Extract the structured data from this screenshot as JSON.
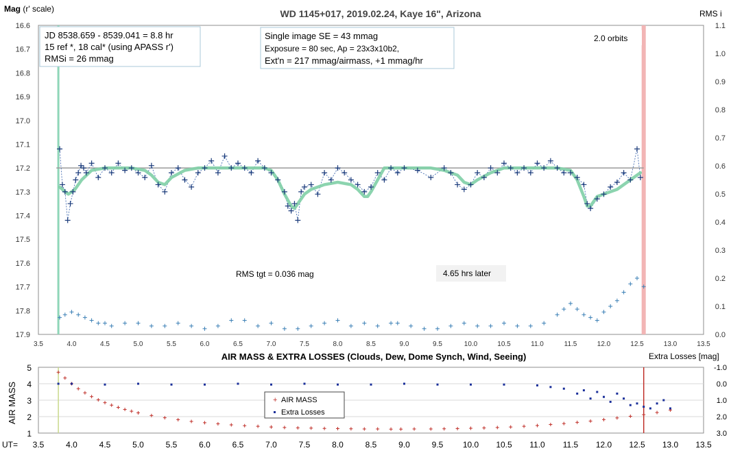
{
  "colors": {
    "mag_point": "#1a3a7a",
    "mag_line": "#2e5ca8",
    "model": "#7fcfa6",
    "rms_point": "#3a7fb5",
    "airmass": "#c0302a",
    "extra_losses": "#1a2f9a",
    "start_marker": "#8fd6b8",
    "end_marker": "#f2b5b5",
    "reference_line": "#9a9a9a",
    "grid": "#d9d9d9"
  },
  "top_chart": {
    "title_parts": [
      "WD 1145+017, ",
      "2019.02.24",
      ", Kaye 16\", Arizona"
    ],
    "ylabel_left_bold": "Mag",
    "ylabel_left_rest": " (r' scale)",
    "ylabel_right": "RMS i",
    "info_box_left": [
      "JD 8538.659 - 8539.041 = 8.8 hr",
      " 15 ref *, 18 cal* (using APASS r')",
      "RMSi = 26 mmag"
    ],
    "info_box_right": [
      "Single image SE = 43 mmag",
      "Exposure = 80 sec, Ap = 23x3x10b2,",
      "Ext'n = 217 mmag/airmass, +1 mmag/hr"
    ],
    "annotation_orbits": "2.0 orbits",
    "annotation_rms": "RMS tgt = 0.036 mag",
    "annotation_later": "4.65 hrs later"
  },
  "bottom_chart": {
    "title": "AIR MASS & EXTRA LOSSES (Clouds, Dew, Dome Synch, Wind, Seeing)",
    "ylabel_left": "AIR MASS",
    "ylabel_right": "Extra Losses [mag]",
    "xlabel": "UT=",
    "legend": [
      "AIR MASS",
      "Extra Losses"
    ]
  },
  "chart_data": [
    {
      "type": "scatter",
      "title": "WD 1145+017, 2019.02.24, Kaye 16\", Arizona",
      "xlabel": "",
      "ylabel": "Mag (r' scale)",
      "y2label": "RMS i",
      "xlim": [
        3.5,
        13.5
      ],
      "ylim": [
        17.9,
        16.6
      ],
      "y2lim": [
        0.0,
        1.1
      ],
      "x_ticks": [
        "3.5",
        "4.0",
        "4.5",
        "5.0",
        "5.5",
        "6.0",
        "6.5",
        "7.0",
        "7.5",
        "8.0",
        "8.5",
        "9.0",
        "9.5",
        "10.0",
        "10.5",
        "11.0",
        "11.5",
        "12.0",
        "12.5",
        "13.0",
        "13.5"
      ],
      "y_ticks": [
        "16.6",
        "16.7",
        "16.8",
        "16.9",
        "17.0",
        "17.1",
        "17.2",
        "17.3",
        "17.4",
        "17.5",
        "17.6",
        "17.7",
        "17.8",
        "17.9"
      ],
      "y2_ticks": [
        "1.1",
        "1.0",
        "0.9",
        "0.8",
        "0.7",
        "0.6",
        "0.5",
        "0.4",
        "0.3",
        "0.2",
        "0.1",
        "0.0"
      ],
      "grid": false,
      "reference_line_mag": 17.2,
      "start_marker_x": 3.8,
      "end_marker_x": 12.6,
      "series": [
        {
          "name": "",
          "type": "scatter",
          "x": [
            3.82,
            3.86,
            3.9,
            3.94,
            3.98,
            4.02,
            4.06,
            4.1,
            4.14,
            4.18,
            4.22,
            4.3,
            4.4,
            4.5,
            4.6,
            4.7,
            4.8,
            4.9,
            5.0,
            5.1,
            5.2,
            5.3,
            5.4,
            5.5,
            5.6,
            5.7,
            5.8,
            5.9,
            6.0,
            6.1,
            6.2,
            6.3,
            6.4,
            6.5,
            6.6,
            6.7,
            6.8,
            6.9,
            7.0,
            7.1,
            7.2,
            7.25,
            7.3,
            7.35,
            7.4,
            7.45,
            7.5,
            7.6,
            7.7,
            7.8,
            7.9,
            8.0,
            8.1,
            8.2,
            8.3,
            8.4,
            8.5,
            8.6,
            8.7,
            8.8,
            8.9,
            9.0,
            9.2,
            9.4,
            9.6,
            9.7,
            9.8,
            9.9,
            10.0,
            10.1,
            10.2,
            10.3,
            10.4,
            10.5,
            10.6,
            10.7,
            10.8,
            10.9,
            11.0,
            11.1,
            11.2,
            11.3,
            11.4,
            11.5,
            11.6,
            11.7,
            11.75,
            11.8,
            11.9,
            12.0,
            12.1,
            12.2,
            12.3,
            12.4,
            12.5,
            12.55
          ],
          "values": [
            17.12,
            17.27,
            17.3,
            17.42,
            17.35,
            17.3,
            17.25,
            17.22,
            17.19,
            17.2,
            17.22,
            17.18,
            17.24,
            17.2,
            17.22,
            17.18,
            17.21,
            17.2,
            17.22,
            17.24,
            17.19,
            17.27,
            17.3,
            17.22,
            17.2,
            17.25,
            17.28,
            17.22,
            17.2,
            17.17,
            17.22,
            17.15,
            17.2,
            17.18,
            17.2,
            17.22,
            17.17,
            17.2,
            17.22,
            17.25,
            17.3,
            17.36,
            17.38,
            17.35,
            17.42,
            17.3,
            17.28,
            17.27,
            17.31,
            17.22,
            17.25,
            17.2,
            17.22,
            17.25,
            17.27,
            17.3,
            17.28,
            17.22,
            17.25,
            17.2,
            17.22,
            17.2,
            17.21,
            17.24,
            17.2,
            17.22,
            17.27,
            17.29,
            17.27,
            17.22,
            17.24,
            17.2,
            17.22,
            17.18,
            17.2,
            17.22,
            17.2,
            17.22,
            17.18,
            17.2,
            17.17,
            17.2,
            17.22,
            17.22,
            17.24,
            17.27,
            17.35,
            17.37,
            17.33,
            17.31,
            17.28,
            17.26,
            17.22,
            17.25,
            17.12,
            17.24
          ]
        },
        {
          "name": "",
          "type": "line",
          "x": [
            3.82,
            3.9,
            3.95,
            4.05,
            4.15,
            4.3,
            4.5,
            4.7,
            4.9,
            5.1,
            5.2,
            5.3,
            5.4,
            5.5,
            5.7,
            5.9,
            6.1,
            6.3,
            6.5,
            6.7,
            6.9,
            7.0,
            7.1,
            7.2,
            7.3,
            7.35,
            7.4,
            7.5,
            7.6,
            7.8,
            8.0,
            8.2,
            8.3,
            8.4,
            8.45,
            8.5,
            8.6,
            8.7,
            8.8,
            9.0,
            9.2,
            9.4,
            9.6,
            9.8,
            9.9,
            10.0,
            10.1,
            10.3,
            10.5,
            10.7,
            10.9,
            11.1,
            11.3,
            11.5,
            11.6,
            11.7,
            11.75,
            11.8,
            11.85,
            11.9,
            12.0,
            12.2,
            12.4,
            12.55
          ],
          "values": [
            17.28,
            17.3,
            17.31,
            17.29,
            17.25,
            17.21,
            17.2,
            17.2,
            17.2,
            17.21,
            17.23,
            17.26,
            17.27,
            17.24,
            17.21,
            17.2,
            17.2,
            17.2,
            17.2,
            17.2,
            17.2,
            17.21,
            17.25,
            17.31,
            17.36,
            17.37,
            17.35,
            17.31,
            17.29,
            17.27,
            17.26,
            17.27,
            17.29,
            17.32,
            17.32,
            17.3,
            17.25,
            17.2,
            17.2,
            17.2,
            17.2,
            17.2,
            17.21,
            17.23,
            17.26,
            17.27,
            17.25,
            17.22,
            17.2,
            17.2,
            17.2,
            17.2,
            17.2,
            17.21,
            17.25,
            17.32,
            17.36,
            17.36,
            17.34,
            17.32,
            17.31,
            17.29,
            17.25,
            17.22
          ]
        },
        {
          "name": "",
          "type": "scatter",
          "axis": "y2",
          "x": [
            3.82,
            3.9,
            4.0,
            4.1,
            4.2,
            4.3,
            4.4,
            4.5,
            4.6,
            4.8,
            5.0,
            5.2,
            5.4,
            5.6,
            5.8,
            6.0,
            6.2,
            6.4,
            6.6,
            6.8,
            7.0,
            7.2,
            7.4,
            7.6,
            7.8,
            8.0,
            8.2,
            8.4,
            8.6,
            8.8,
            8.9,
            9.1,
            9.3,
            9.5,
            9.7,
            9.9,
            10.1,
            10.3,
            10.5,
            10.7,
            10.9,
            11.1,
            11.3,
            11.4,
            11.5,
            11.6,
            11.7,
            11.8,
            11.9,
            12.0,
            12.1,
            12.2,
            12.3,
            12.4,
            12.5,
            12.6
          ],
          "values": [
            0.06,
            0.07,
            0.08,
            0.07,
            0.06,
            0.05,
            0.04,
            0.04,
            0.03,
            0.04,
            0.04,
            0.03,
            0.03,
            0.04,
            0.03,
            0.02,
            0.03,
            0.05,
            0.05,
            0.03,
            0.04,
            0.02,
            0.02,
            0.03,
            0.04,
            0.05,
            0.03,
            0.04,
            0.03,
            0.04,
            0.04,
            0.03,
            0.02,
            0.02,
            0.03,
            0.04,
            0.03,
            0.03,
            0.04,
            0.03,
            0.03,
            0.04,
            0.07,
            0.09,
            0.11,
            0.09,
            0.07,
            0.06,
            0.05,
            0.08,
            0.1,
            0.12,
            0.15,
            0.18,
            0.2,
            0.17
          ]
        }
      ]
    },
    {
      "type": "scatter",
      "title": "AIR MASS & EXTRA LOSSES (Clouds, Dew, Dome Synch, Wind, Seeing)",
      "xlabel": "UT=",
      "ylabel": "AIR MASS",
      "y2label": "Extra Losses [mag]",
      "xlim": [
        3.5,
        13.5
      ],
      "ylim": [
        1,
        5
      ],
      "y2lim": [
        3.0,
        -1.0
      ],
      "x_ticks": [
        "3.5",
        "4.0",
        "4.5",
        "5.0",
        "5.5",
        "6.0",
        "6.5",
        "7.0",
        "7.5",
        "8.0",
        "8.5",
        "9.0",
        "9.5",
        "10.0",
        "10.5",
        "11.0",
        "11.5",
        "12.0",
        "12.5",
        "13.0",
        "13.5"
      ],
      "y_ticks": [
        "5",
        "4",
        "3",
        "2",
        "1"
      ],
      "y2_ticks": [
        "-1.0",
        "0.0",
        "1.0",
        "2.0",
        "3.0"
      ],
      "grid": false,
      "legend_position": "center",
      "start_marker_x": 3.8,
      "end_marker_x": 12.6,
      "series": [
        {
          "name": "AIR MASS",
          "x": [
            3.8,
            3.9,
            4.0,
            4.1,
            4.2,
            4.3,
            4.4,
            4.5,
            4.6,
            4.7,
            4.8,
            4.9,
            5.0,
            5.2,
            5.4,
            5.6,
            5.8,
            6.0,
            6.2,
            6.4,
            6.6,
            6.8,
            7.0,
            7.2,
            7.4,
            7.6,
            7.8,
            8.0,
            8.2,
            8.4,
            8.6,
            8.8,
            8.95,
            9.15,
            9.4,
            9.6,
            9.8,
            10.0,
            10.2,
            10.4,
            10.6,
            10.8,
            11.0,
            11.2,
            11.4,
            11.6,
            11.8,
            12.0,
            12.2,
            12.4,
            12.6,
            12.8,
            13.0
          ],
          "values": [
            4.7,
            4.35,
            4.0,
            3.7,
            3.45,
            3.22,
            3.02,
            2.85,
            2.7,
            2.56,
            2.44,
            2.33,
            2.23,
            2.07,
            1.93,
            1.81,
            1.71,
            1.63,
            1.56,
            1.5,
            1.45,
            1.41,
            1.37,
            1.34,
            1.32,
            1.3,
            1.28,
            1.27,
            1.26,
            1.25,
            1.25,
            1.24,
            1.24,
            1.25,
            1.25,
            1.26,
            1.27,
            1.29,
            1.31,
            1.34,
            1.37,
            1.41,
            1.46,
            1.52,
            1.58,
            1.65,
            1.73,
            1.82,
            1.92,
            2.02,
            2.12,
            2.25,
            2.4
          ]
        },
        {
          "name": "Extra Losses",
          "x": [
            3.8,
            4.0,
            4.5,
            5.0,
            5.5,
            6.0,
            6.5,
            7.0,
            7.5,
            8.0,
            8.5,
            9.0,
            9.5,
            10.0,
            10.5,
            11.0,
            11.2,
            11.4,
            11.6,
            11.7,
            11.8,
            11.9,
            12.0,
            12.1,
            12.2,
            12.3,
            12.4,
            12.5,
            12.6,
            12.7,
            12.8,
            12.9,
            13.0
          ],
          "values": [
            0.0,
            0.0,
            0.05,
            0.0,
            0.05,
            0.05,
            0.0,
            0.05,
            0.0,
            0.05,
            0.05,
            0.0,
            0.05,
            0.05,
            0.05,
            0.1,
            0.2,
            0.3,
            0.6,
            0.4,
            0.9,
            0.5,
            0.8,
            1.1,
            0.6,
            0.9,
            1.3,
            1.2,
            1.4,
            1.5,
            1.2,
            1.0,
            1.5
          ]
        }
      ]
    }
  ]
}
